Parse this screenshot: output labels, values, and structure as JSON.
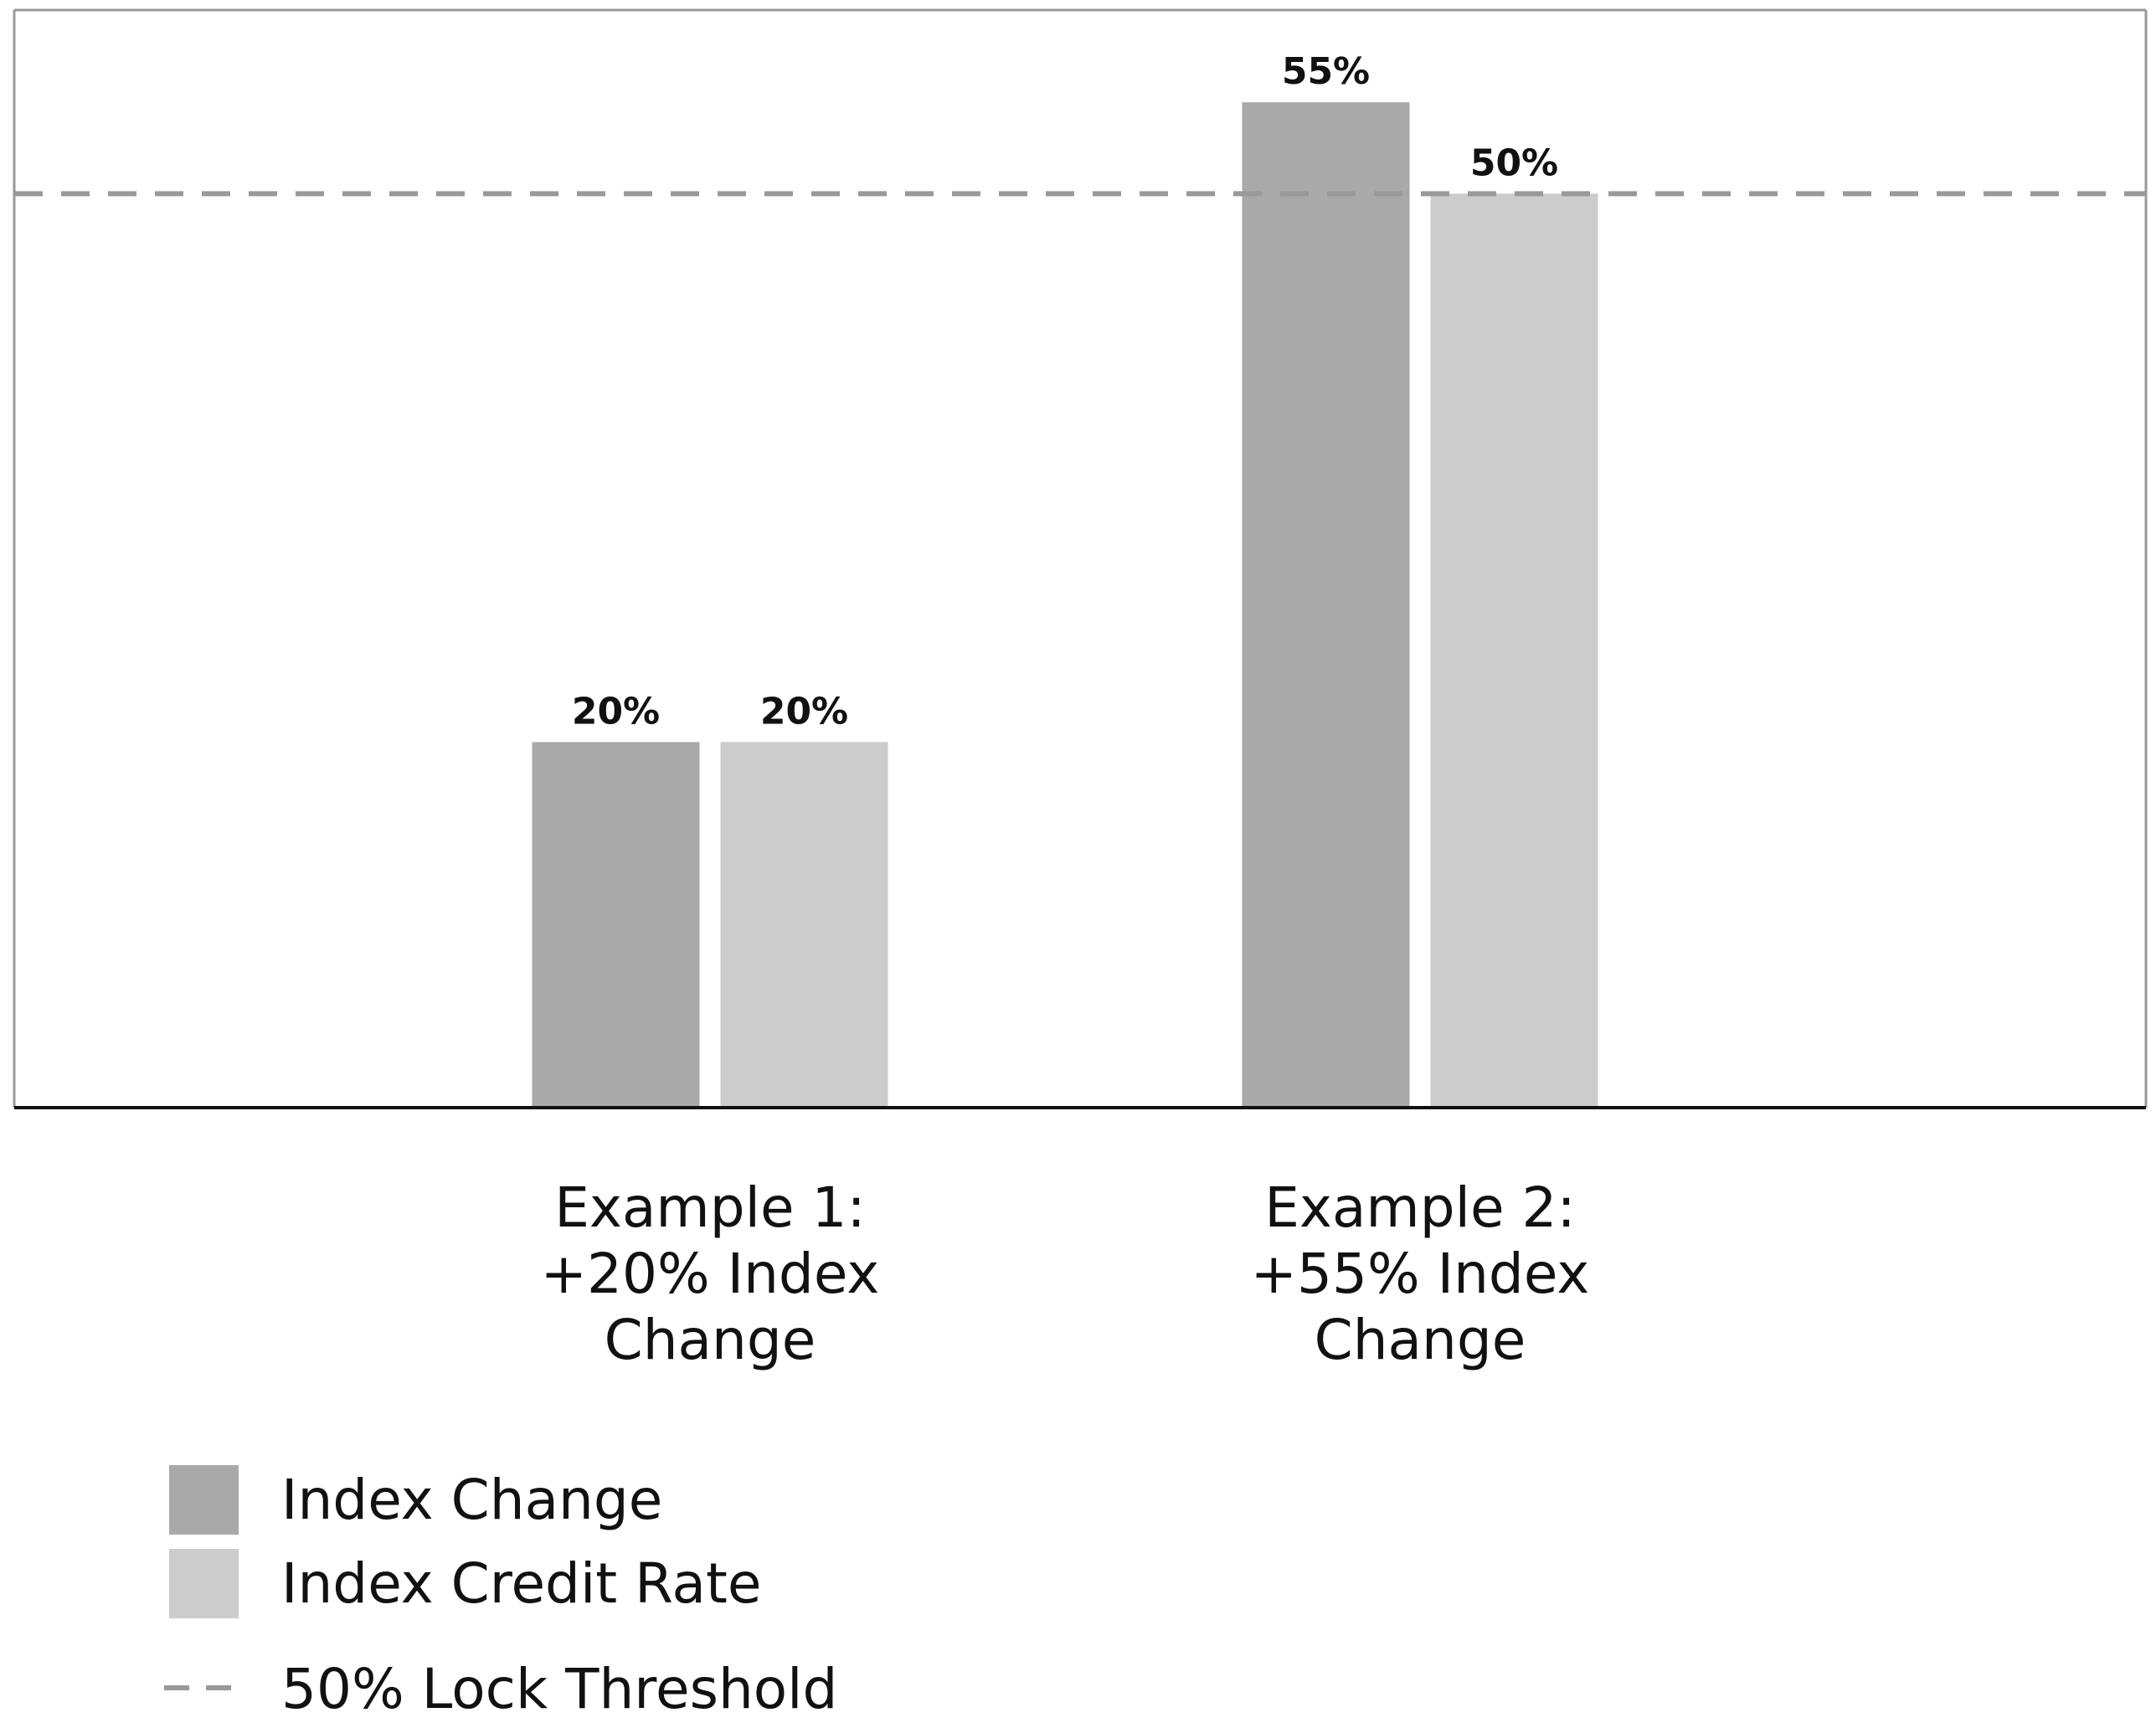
{
  "chart_data": {
    "type": "bar",
    "categories": [
      [
        "Example 1:",
        "+20% Index",
        "Change"
      ],
      [
        "Example 2:",
        "+55% Index",
        "Change"
      ]
    ],
    "series": [
      {
        "name": "Index Change",
        "color": "#a9a9a9",
        "values": [
          20,
          55
        ],
        "labels": [
          "20%",
          "55%"
        ]
      },
      {
        "name": "Index Credit Rate",
        "color": "#cccccc",
        "values": [
          20,
          50
        ],
        "labels": [
          "20%",
          "50%"
        ]
      }
    ],
    "threshold": {
      "value": 50,
      "label": "50% Lock Threshold",
      "color": "#999999",
      "style": "dashed"
    },
    "ylim": [
      0,
      60
    ],
    "grid": false,
    "legend": "bottom-left",
    "title": "",
    "xlabel": "",
    "ylabel": ""
  }
}
